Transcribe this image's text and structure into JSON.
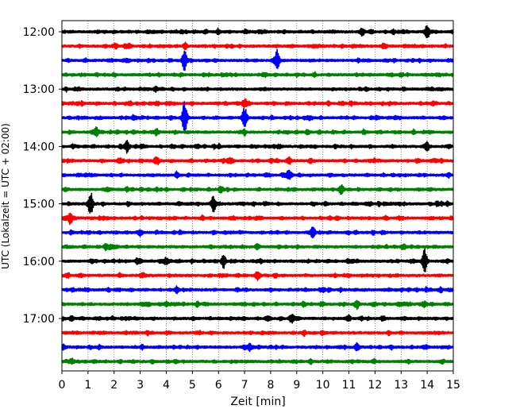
{
  "chart_data": {
    "type": "line",
    "subtype": "helicorder",
    "xlabel": "Zeit  [min]",
    "ylabel": "UTC (Lokalzeit = UTC + 02:00)",
    "xlim": [
      0,
      15
    ],
    "x_ticks": [
      "0",
      "1",
      "2",
      "3",
      "4",
      "5",
      "6",
      "7",
      "8",
      "9",
      "10",
      "11",
      "12",
      "13",
      "14",
      "15"
    ],
    "y_tick_labels": [
      "12:00",
      "13:00",
      "14:00",
      "15:00",
      "16:00",
      "17:00"
    ],
    "grid": "vertical-dotted",
    "trace_colors": [
      "#000000",
      "#ff0000",
      "#0000ff",
      "#008000"
    ],
    "traces": [
      {
        "start": "12:00",
        "events": [
          [
            14.0,
            1.2
          ],
          [
            11.5,
            0.8
          ]
        ]
      },
      {
        "start": "12:15",
        "events": []
      },
      {
        "start": "12:30",
        "events": [
          [
            4.7,
            2.0
          ],
          [
            8.25,
            2.4
          ]
        ]
      },
      {
        "start": "12:45",
        "events": []
      },
      {
        "start": "13:00",
        "events": []
      },
      {
        "start": "13:15",
        "events": [
          [
            7.0,
            0.8
          ]
        ]
      },
      {
        "start": "13:30",
        "events": [
          [
            4.7,
            3.2
          ],
          [
            7.0,
            2.0
          ]
        ]
      },
      {
        "start": "13:45",
        "events": [
          [
            1.3,
            0.8
          ]
        ]
      },
      {
        "start": "14:00",
        "events": [
          [
            2.5,
            1.0
          ],
          [
            14.0,
            0.8
          ]
        ]
      },
      {
        "start": "14:15",
        "events": [
          [
            6.4,
            0.6
          ],
          [
            8.7,
            0.6
          ]
        ]
      },
      {
        "start": "14:30",
        "events": [
          [
            8.7,
            0.8
          ]
        ]
      },
      {
        "start": "14:45",
        "events": [
          [
            10.7,
            1.0
          ],
          [
            6.1,
            0.6
          ]
        ]
      },
      {
        "start": "15:00",
        "events": [
          [
            1.1,
            2.2
          ],
          [
            5.8,
            1.6
          ]
        ]
      },
      {
        "start": "15:15",
        "events": [
          [
            0.3,
            1.0
          ]
        ]
      },
      {
        "start": "15:30",
        "events": [
          [
            9.6,
            1.0
          ],
          [
            3.0,
            0.6
          ]
        ]
      },
      {
        "start": "15:45",
        "events": [
          [
            1.7,
            0.6
          ]
        ]
      },
      {
        "start": "16:00",
        "events": [
          [
            13.9,
            2.5
          ],
          [
            6.2,
            1.2
          ],
          [
            4.0,
            0.7
          ]
        ]
      },
      {
        "start": "16:15",
        "events": [
          [
            7.5,
            1.0
          ]
        ]
      },
      {
        "start": "16:30",
        "events": [
          [
            4.4,
            0.6
          ]
        ]
      },
      {
        "start": "16:45",
        "events": [
          [
            11.3,
            0.6
          ],
          [
            13.9,
            0.6
          ]
        ]
      },
      {
        "start": "17:00",
        "events": [
          [
            8.8,
            0.8
          ],
          [
            7.9,
            0.6
          ]
        ]
      },
      {
        "start": "17:15",
        "events": []
      },
      {
        "start": "17:30",
        "events": [
          [
            7.2,
            0.6
          ],
          [
            11.3,
            0.6
          ]
        ]
      },
      {
        "start": "17:45",
        "events": []
      }
    ]
  }
}
